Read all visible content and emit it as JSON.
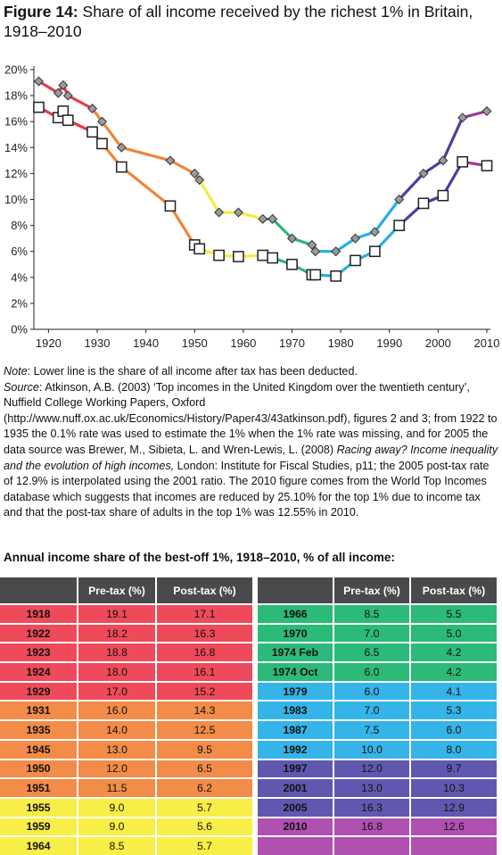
{
  "figure": {
    "label": "Figure 14:",
    "title": "Share of all income received by the richest 1% in Britain, 1918–2010"
  },
  "notes": {
    "note_label": "Note",
    "note_text": ":  Lower line is the share of all income after tax has been deducted.",
    "source_label": "Source",
    "source_text_1": ":  Atkinson, A.B. (2003) ‘Top incomes in the United Kingdom over the twentieth century’, Nuffield College Working Papers, Oxford (http://www.nuff.ox.ac.uk/Economics/History/Paper43/43atkinson.pdf), figures 2 and 3; from 1922 to 1935 the 0.1% rate was used to estimate the 1% when the 1% rate was missing, and for 2005 the data source was Brewer, M., Sibieta, L. and Wren-Lewis, L. (2008) ",
    "source_italic": "Racing away? Income inequality and the evolution of high incomes,",
    "source_text_2": " London: Institute for Fiscal Studies, p11; the 2005 post-tax rate of 12.9% is interpolated using the 2001 ratio. The 2010 figure comes from the World Top Incomes database which suggests that incomes are reduced by 25.10% for the top 1% due to income tax and that the post-tax share of adults in the top 1% was 12.55% in 2010."
  },
  "table": {
    "title": "Annual income share of the best-off 1%, 1918–2010, % of all income:",
    "headers": [
      "",
      "Pre-tax (%)",
      "Post-tax (%)"
    ],
    "left_rows": [
      {
        "year": "1918",
        "pre": "19.1",
        "post": "17.1",
        "color": "#ee4a5a"
      },
      {
        "year": "1922",
        "pre": "18.2",
        "post": "16.3",
        "color": "#ee4a5a"
      },
      {
        "year": "1923",
        "pre": "18.8",
        "post": "16.8",
        "color": "#ee4a5a"
      },
      {
        "year": "1924",
        "pre": "18.0",
        "post": "16.1",
        "color": "#ee4a5a"
      },
      {
        "year": "1929",
        "pre": "17.0",
        "post": "15.2",
        "color": "#ee4a5a"
      },
      {
        "year": "1931",
        "pre": "16.0",
        "post": "14.3",
        "color": "#f28c48"
      },
      {
        "year": "1935",
        "pre": "14.0",
        "post": "12.5",
        "color": "#f28c48"
      },
      {
        "year": "1945",
        "pre": "13.0",
        "post": "9.5",
        "color": "#f28c48"
      },
      {
        "year": "1950",
        "pre": "12.0",
        "post": "6.5",
        "color": "#f28c48"
      },
      {
        "year": "1951",
        "pre": "11.5",
        "post": "6.2",
        "color": "#f28c48"
      },
      {
        "year": "1955",
        "pre": "9.0",
        "post": "5.7",
        "color": "#f8ee48"
      },
      {
        "year": "1959",
        "pre": "9.0",
        "post": "5.6",
        "color": "#f8ee48"
      },
      {
        "year": "1964",
        "pre": "8.5",
        "post": "5.7",
        "color": "#f8ee48"
      }
    ],
    "right_rows": [
      {
        "year": "1966",
        "pre": "8.5",
        "post": "5.5",
        "color": "#2cba78"
      },
      {
        "year": "1970",
        "pre": "7.0",
        "post": "5.0",
        "color": "#2cba78"
      },
      {
        "year": "1974 Feb",
        "pre": "6.5",
        "post": "4.2",
        "color": "#2cba78"
      },
      {
        "year": "1974 Oct",
        "pre": "6.0",
        "post": "4.2",
        "color": "#2cba78"
      },
      {
        "year": "1979",
        "pre": "6.0",
        "post": "4.1",
        "color": "#34b4e8"
      },
      {
        "year": "1983",
        "pre": "7.0",
        "post": "5.3",
        "color": "#34b4e8"
      },
      {
        "year": "1987",
        "pre": "7.5",
        "post": "6.0",
        "color": "#34b4e8"
      },
      {
        "year": "1992",
        "pre": "10.0",
        "post": "8.0",
        "color": "#34b4e8"
      },
      {
        "year": "1997",
        "pre": "12.0",
        "post": "9.7",
        "color": "#6058b0"
      },
      {
        "year": "2001",
        "pre": "13.0",
        "post": "10.3",
        "color": "#6058b0"
      },
      {
        "year": "2005",
        "pre": "16.3",
        "post": "12.9",
        "color": "#6058b0"
      },
      {
        "year": "2010",
        "pre": "16.8",
        "post": "12.6",
        "color": "#b050b0"
      },
      {
        "year": "",
        "pre": "",
        "post": "",
        "color": "#b050b0"
      }
    ]
  },
  "chart_data": {
    "type": "line",
    "title": "",
    "xlabel": "",
    "ylabel": "",
    "xlim": [
      1918,
      2010
    ],
    "ylim": [
      0,
      20
    ],
    "x_ticks": [
      "1920",
      "1930",
      "1940",
      "1950",
      "1960",
      "1970",
      "1980",
      "1990",
      "2000",
      "2010"
    ],
    "y_ticks": [
      "0%",
      "2%",
      "4%",
      "6%",
      "8%",
      "10%",
      "12%",
      "14%",
      "16%",
      "18%",
      "20%"
    ],
    "grid": false,
    "legend": "none",
    "segment_colors": [
      "#e8394d",
      "#ef8535",
      "#f6ea3e",
      "#2cb673",
      "#29ade3",
      "#4b3f9c",
      "#9c3a9c"
    ],
    "series": [
      {
        "marker": "diamond",
        "x": [
          1918,
          1922,
          1923,
          1924,
          1929,
          1931,
          1935,
          1945,
          1950,
          1951,
          1955,
          1959,
          1964,
          1966,
          1970,
          1974.1,
          1974.8,
          1979,
          1983,
          1987,
          1992,
          1997,
          2001,
          2005,
          2010
        ],
        "values": [
          19.1,
          18.2,
          18.8,
          18.0,
          17.0,
          16.0,
          14.0,
          13.0,
          12.0,
          11.5,
          9.0,
          9.0,
          8.5,
          8.5,
          7.0,
          6.5,
          6.0,
          6.0,
          7.0,
          7.5,
          10.0,
          12.0,
          13.0,
          16.3,
          16.8
        ]
      },
      {
        "marker": "square",
        "x": [
          1918,
          1922,
          1923,
          1924,
          1929,
          1931,
          1935,
          1945,
          1950,
          1951,
          1955,
          1959,
          1964,
          1966,
          1970,
          1974.1,
          1974.8,
          1979,
          1983,
          1987,
          1992,
          1997,
          2001,
          2005,
          2010
        ],
        "values": [
          17.1,
          16.3,
          16.8,
          16.1,
          15.2,
          14.3,
          12.5,
          9.5,
          6.5,
          6.2,
          5.7,
          5.6,
          5.7,
          5.5,
          5.0,
          4.2,
          4.2,
          4.1,
          5.3,
          6.0,
          8.0,
          9.7,
          10.3,
          12.9,
          12.6
        ]
      }
    ],
    "segment_of_point": [
      0,
      0,
      0,
      0,
      0,
      1,
      1,
      1,
      1,
      1,
      2,
      2,
      2,
      3,
      3,
      3,
      3,
      4,
      4,
      4,
      4,
      5,
      5,
      5,
      6
    ]
  }
}
